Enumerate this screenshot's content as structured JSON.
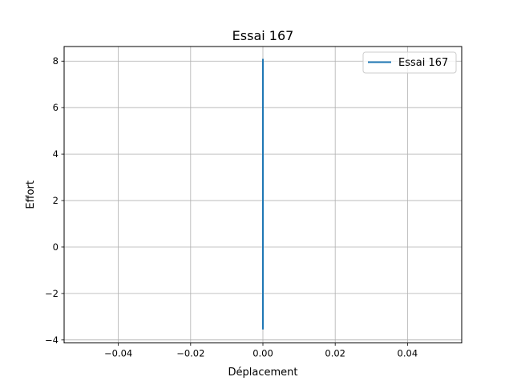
{
  "chart_data": {
    "type": "line",
    "title": "Essai 167",
    "xlabel": "Déplacement",
    "ylabel": "Effort",
    "xlim": [
      -0.055,
      0.055
    ],
    "ylim": [
      -4.13,
      8.63
    ],
    "xticks": [
      -0.04,
      -0.02,
      0.0,
      0.02,
      0.04
    ],
    "xtick_labels": [
      "−0.04",
      "−0.02",
      "0.00",
      "0.02",
      "0.04"
    ],
    "yticks": [
      -4,
      -2,
      0,
      2,
      4,
      6,
      8
    ],
    "ytick_labels": [
      "−4",
      "−2",
      "0",
      "2",
      "4",
      "6",
      "8"
    ],
    "grid": true,
    "legend_position": "top-right",
    "series": [
      {
        "name": "Essai 167",
        "color": "#1f77b4",
        "x": [
          0.0,
          0.0
        ],
        "y": [
          -3.55,
          8.1
        ]
      }
    ]
  }
}
